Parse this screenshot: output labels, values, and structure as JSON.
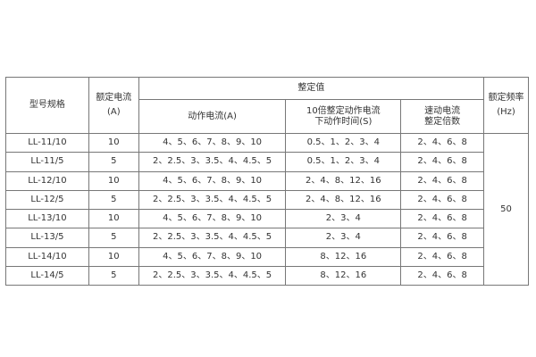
{
  "headers": {
    "model": "型号规格",
    "rated_current": [
      "额定电流",
      "(A)"
    ],
    "setting_values": "整定值",
    "action_current": "动作电流(A)",
    "action_time": [
      "10倍整定动作电流",
      "下动作时间(S)"
    ],
    "instant_multiple": [
      "速动电流",
      "整定倍数"
    ],
    "rated_frequency": [
      "额定频率",
      "(Hz)"
    ]
  },
  "rows": [
    {
      "model": "LL-11/10",
      "rated": "10",
      "action_current": "4、5、6、7、8、9、10",
      "action_time": "0.5、1、2、3、4",
      "multiple": "2、4、6、8"
    },
    {
      "model": "LL-11/5",
      "rated": "5",
      "action_current": "2、2.5、3、3.5、4、4.5、5",
      "action_time": "0.5、1、2、3、4",
      "multiple": "2、4、6、8"
    },
    {
      "model": "LL-12/10",
      "rated": "10",
      "action_current": "4、5、6、7、8、9、10",
      "action_time": "2、4、8、12、16",
      "multiple": "2、4、6、8"
    },
    {
      "model": "LL-12/5",
      "rated": "5",
      "action_current": "2、2.5、3、3.5、4、4.5、5",
      "action_time": "2、4、8、12、16",
      "multiple": "2、4、6、8"
    },
    {
      "model": "LL-13/10",
      "rated": "10",
      "action_current": "4、5、6、7、8、9、10",
      "action_time": "2、3、4",
      "multiple": "2、4、6、8"
    },
    {
      "model": "LL-13/5",
      "rated": "5",
      "action_current": "2、2.5、3、3.5、4、4.5、5",
      "action_time": "2、3、4",
      "multiple": "2、4、6、8"
    },
    {
      "model": "LL-14/10",
      "rated": "10",
      "action_current": "4、5、6、7、8、9、10",
      "action_time": "8、12、16",
      "multiple": "2、4、6、8"
    },
    {
      "model": "LL-14/5",
      "rated": "5",
      "action_current": "2、2.5、3、3.5、4、4.5、5",
      "action_time": "8、12、16",
      "multiple": "2、4、6、8"
    }
  ],
  "frequency": "50"
}
